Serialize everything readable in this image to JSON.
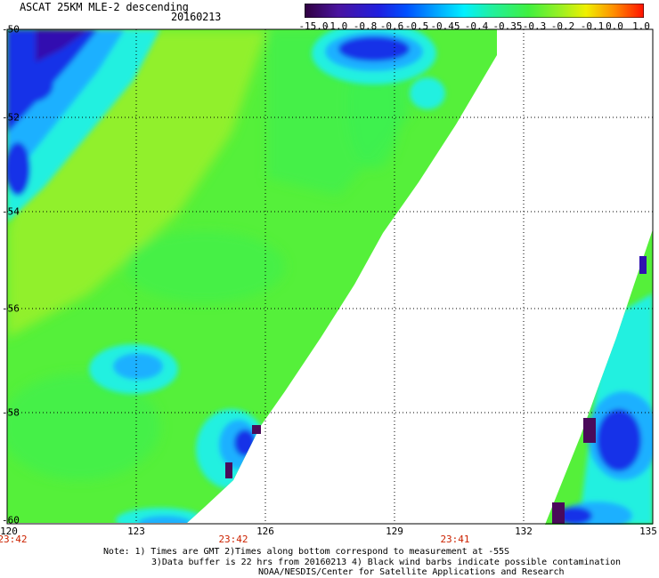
{
  "header": {
    "title": "ASCAT 25KM MLE-2 descending",
    "date": "20160213"
  },
  "colorbar": {
    "labels": [
      "-15.0",
      "-1.0",
      "-0.8",
      "-0.6",
      "-0.5",
      "-0.45",
      "-0.4",
      "-0.35",
      "-0.3",
      "-0.2",
      "-0.1",
      "0.0",
      "1.0"
    ],
    "colors": [
      "#3c0060",
      "#4a1aa0",
      "#2a20d8",
      "#0050ff",
      "#0090ff",
      "#00d8ff",
      "#00f0d0",
      "#30f060",
      "#50f030",
      "#90f020",
      "#e0f000",
      "#ffa000",
      "#ff2000"
    ]
  },
  "map": {
    "lat_labels": [
      "-50",
      "-52",
      "-54",
      "-56",
      "-58",
      "-60"
    ],
    "lon_labels": [
      "120",
      "123",
      "126",
      "129",
      "132",
      "135"
    ],
    "time_labels": [
      "23:42",
      "23:42",
      "23:41"
    ],
    "colors": {
      "green_base": "#55f03a",
      "yellow_green": "#9cf02a",
      "green": "#3ef050",
      "cyan": "#20f0e0",
      "light_blue": "#1ab0ff",
      "blue": "#1830e8",
      "dark_blue": "#3010b0",
      "purple": "#4a0a5a"
    }
  },
  "notes": {
    "line1": "Note: 1) Times are GMT 2)Times along bottom correspond to measurement at -55S",
    "line2": "3)Data buffer is 22 hrs from 20160213 4) Black wind barbs indicate possible contamination",
    "line3": "NOAA/NESDIS/Center for Satellite Applications and Research"
  }
}
